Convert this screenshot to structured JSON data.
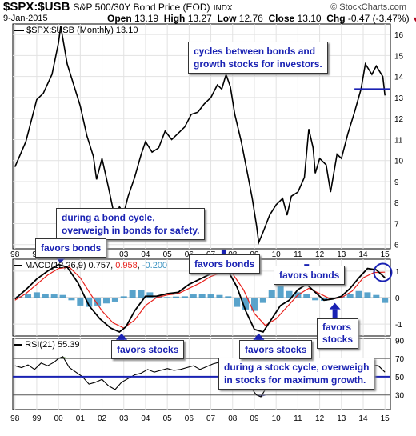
{
  "header": {
    "symbol": "$SPX:$USB",
    "description": "S&P 500/30Y Bond Price (EOD)",
    "exchange": "INDX",
    "date": "9-Jan-2015",
    "source": "© StockCharts.com",
    "quote": {
      "open_label": "Open",
      "open": "13.19",
      "high_label": "High",
      "high": "13.27",
      "low_label": "Low",
      "low": "12.76",
      "close_label": "Close",
      "close": "13.10",
      "chg_label": "Chg",
      "chg": "-0.47 (-3.47%)"
    }
  },
  "colors": {
    "price_line": "#000000",
    "macd_line": "#000000",
    "signal_line": "#e8211c",
    "histogram": "#3c93c2",
    "annotation_text": "#1a22b3",
    "annotation_arrow": "#1a22b3",
    "rsi_fill_overbought": "#6a9a4d",
    "rsi_fill_oversold": "#6d6d9d",
    "circle": "#1a22b3"
  },
  "chart_data": [
    {
      "type": "line",
      "panel": "price",
      "legend": "$SPX:$USB (Monthly) 13.10",
      "yticks": [
        6,
        7,
        8,
        9,
        10,
        11,
        12,
        13,
        14,
        15,
        16
      ],
      "ylim": [
        5.8,
        16.5
      ],
      "x": [
        1998.0,
        1998.5,
        1999.0,
        1999.3,
        1999.7,
        2000.0,
        2000.1,
        2000.4,
        2000.7,
        2001.0,
        2001.3,
        2001.6,
        2001.75,
        2002.0,
        2002.3,
        2002.6,
        2002.8,
        2003.0,
        2003.2,
        2003.5,
        2003.8,
        2004.0,
        2004.3,
        2004.6,
        2004.9,
        2005.2,
        2005.5,
        2005.8,
        2006.1,
        2006.4,
        2006.7,
        2007.0,
        2007.3,
        2007.5,
        2007.7,
        2007.9,
        2008.1,
        2008.4,
        2008.7,
        2008.9,
        2009.1,
        2009.2,
        2009.4,
        2009.7,
        2010.0,
        2010.3,
        2010.5,
        2010.7,
        2011.0,
        2011.3,
        2011.5,
        2011.7,
        2011.8,
        2012.0,
        2012.3,
        2012.5,
        2012.8,
        2013.0,
        2013.3,
        2013.6,
        2013.9,
        2014.1,
        2014.4,
        2014.6,
        2014.9,
        2015.0
      ],
      "y": [
        9.7,
        10.9,
        12.9,
        13.2,
        14.1,
        15.6,
        16.4,
        14.6,
        13.6,
        12.6,
        11.2,
        10.2,
        9.1,
        10.1,
        8.7,
        7.2,
        7.8,
        7.5,
        8.3,
        9.2,
        10.3,
        10.9,
        10.4,
        10.6,
        11.4,
        11.0,
        11.3,
        11.6,
        12.2,
        12.3,
        12.7,
        13.0,
        13.6,
        13.4,
        14.1,
        13.5,
        12.2,
        10.9,
        9.3,
        8.2,
        6.9,
        6.1,
        6.6,
        7.4,
        7.9,
        8.2,
        7.4,
        8.3,
        8.5,
        9.2,
        11.5,
        10.6,
        9.4,
        10.1,
        9.8,
        8.5,
        10.3,
        10.1,
        11.3,
        12.3,
        13.4,
        14.6,
        14.1,
        14.5,
        14.0,
        13.1
      ],
      "hline": 13.4,
      "hline_x_start": 2013.6
    },
    {
      "type": "line",
      "panel": "macd",
      "legend": "MACD(12,26,9) 0.757, 0.958, -0.200",
      "legend_parts": {
        "label": "MACD(12,26,9)",
        "macd": "0.757",
        "signal": "0.958",
        "hist": "-0.200"
      },
      "yticks": [
        -1,
        0,
        1
      ],
      "ylim": [
        -1.45,
        1.45
      ],
      "series": [
        {
          "role": "macd",
          "x": [
            1998.0,
            1998.5,
            1999.0,
            1999.5,
            2000.0,
            2000.4,
            2000.9,
            2001.4,
            2001.9,
            2002.4,
            2002.8,
            2003.1,
            2003.5,
            2004.0,
            2004.5,
            2005.0,
            2005.5,
            2006.0,
            2006.5,
            2007.0,
            2007.4,
            2007.8,
            2008.2,
            2008.6,
            2009.0,
            2009.4,
            2009.8,
            2010.2,
            2010.6,
            2011.0,
            2011.4,
            2011.8,
            2012.2,
            2012.6,
            2013.0,
            2013.4,
            2013.8,
            2014.2,
            2014.6,
            2015.0
          ],
          "y": [
            -0.05,
            0.3,
            0.7,
            1.0,
            1.25,
            1.15,
            0.55,
            -0.3,
            -0.8,
            -1.15,
            -1.3,
            -1.1,
            -0.5,
            0.05,
            0.05,
            0.15,
            0.2,
            0.5,
            0.7,
            0.9,
            1.05,
            1.0,
            0.4,
            -0.5,
            -1.2,
            -1.3,
            -0.8,
            -0.3,
            -0.1,
            0.3,
            0.5,
            0.2,
            -0.1,
            -0.05,
            0.05,
            0.35,
            0.75,
            1.1,
            1.05,
            0.75
          ]
        },
        {
          "role": "signal",
          "x": [
            1998.0,
            1998.5,
            1999.0,
            1999.5,
            2000.0,
            2000.5,
            2001.0,
            2001.5,
            2002.0,
            2002.5,
            2003.0,
            2003.5,
            2004.0,
            2004.5,
            2005.0,
            2005.5,
            2006.0,
            2006.5,
            2007.0,
            2007.5,
            2008.0,
            2008.5,
            2009.0,
            2009.5,
            2010.0,
            2010.5,
            2011.0,
            2011.5,
            2012.0,
            2012.5,
            2013.0,
            2013.5,
            2014.0,
            2014.5,
            2015.0
          ],
          "y": [
            -0.1,
            0.15,
            0.5,
            0.85,
            1.1,
            1.15,
            0.75,
            0.1,
            -0.5,
            -0.95,
            -1.15,
            -0.85,
            -0.3,
            0.0,
            0.1,
            0.15,
            0.35,
            0.55,
            0.8,
            0.95,
            0.9,
            0.3,
            -0.6,
            -1.05,
            -0.8,
            -0.35,
            0.1,
            0.35,
            0.15,
            -0.05,
            0.0,
            0.25,
            0.75,
            0.95,
            0.96
          ]
        },
        {
          "role": "histogram",
          "x": [
            1998.2,
            1998.6,
            1999.0,
            1999.4,
            1999.8,
            2000.2,
            2000.6,
            2001.0,
            2001.4,
            2001.8,
            2002.2,
            2002.6,
            2003.0,
            2003.4,
            2003.8,
            2004.2,
            2004.6,
            2005.0,
            2005.4,
            2005.8,
            2006.2,
            2006.6,
            2007.0,
            2007.4,
            2007.8,
            2008.2,
            2008.6,
            2009.0,
            2009.4,
            2009.8,
            2010.2,
            2010.6,
            2011.0,
            2011.4,
            2011.8,
            2012.2,
            2012.6,
            2013.0,
            2013.4,
            2013.8,
            2014.2,
            2014.6,
            2015.0
          ],
          "y": [
            0.05,
            0.12,
            0.2,
            0.15,
            0.12,
            0.1,
            -0.1,
            -0.3,
            -0.35,
            -0.3,
            -0.22,
            -0.15,
            0.05,
            0.3,
            0.3,
            0.2,
            0.05,
            0.02,
            0.04,
            0.05,
            0.12,
            0.15,
            0.12,
            0.1,
            0.05,
            -0.35,
            -0.45,
            -0.5,
            -0.2,
            0.3,
            0.45,
            0.25,
            0.2,
            0.15,
            -0.1,
            -0.12,
            -0.05,
            0.05,
            0.15,
            0.25,
            0.2,
            0.1,
            -0.2
          ]
        }
      ]
    },
    {
      "type": "line",
      "panel": "rsi",
      "legend": "RSI(21) 55.39",
      "yticks": [
        30,
        50,
        70,
        90
      ],
      "ylim": [
        14,
        92
      ],
      "levels": [
        30,
        70
      ],
      "x": [
        1998.0,
        1998.3,
        1998.6,
        1998.9,
        1999.2,
        1999.5,
        1999.8,
        2000.0,
        2000.2,
        2000.5,
        2000.8,
        2001.1,
        2001.4,
        2001.7,
        2002.0,
        2002.3,
        2002.6,
        2002.9,
        2003.2,
        2003.5,
        2003.8,
        2004.1,
        2004.4,
        2004.7,
        2005.0,
        2005.3,
        2005.6,
        2005.9,
        2006.2,
        2006.5,
        2006.8,
        2007.1,
        2007.4,
        2007.7,
        2008.0,
        2008.3,
        2008.6,
        2008.9,
        2009.1,
        2009.3,
        2009.6,
        2009.9,
        2010.2,
        2010.5,
        2010.8,
        2011.1,
        2011.4,
        2011.7,
        2012.0,
        2012.3,
        2012.6,
        2012.9,
        2013.2,
        2013.5,
        2013.8,
        2014.1,
        2014.4,
        2014.7,
        2015.0
      ],
      "y": [
        62,
        60,
        63,
        58,
        65,
        62,
        66,
        70,
        72,
        60,
        55,
        50,
        42,
        44,
        47,
        40,
        36,
        44,
        48,
        52,
        54,
        58,
        55,
        57,
        59,
        57,
        58,
        60,
        62,
        58,
        61,
        64,
        66,
        62,
        58,
        50,
        42,
        36,
        30,
        28,
        40,
        46,
        50,
        44,
        48,
        52,
        57,
        46,
        50,
        47,
        45,
        52,
        55,
        60,
        64,
        68,
        63,
        62,
        55
      ]
    }
  ],
  "xaxis": {
    "top_ticks": [
      "98",
      "99",
      "00",
      "01",
      "02",
      "03",
      "04",
      "05",
      "06",
      "07",
      "08",
      "09",
      "10",
      "11",
      "12",
      "13",
      "14",
      "15"
    ],
    "bottom_ticks": [
      "98",
      "99",
      "00",
      "01",
      "02",
      "03",
      "04",
      "05",
      "06",
      "07",
      "08",
      "09",
      "10",
      "11",
      "12",
      "13",
      "14",
      "15"
    ]
  },
  "annotations": {
    "cycles_box": [
      "cycles between bonds and",
      "growth stocks for investors."
    ],
    "bond_cycle_box": [
      "during a bond cycle,",
      "overweigh in bonds for safety."
    ],
    "stock_cycle_box": [
      "during a stock cycle, overweigh",
      "in stocks for maximum growth."
    ],
    "favors_bonds_1": "favors bonds",
    "favors_bonds_2": "favors bonds",
    "favors_bonds_3": "favors bonds",
    "favors_stocks_1": "favors stocks",
    "favors_stocks_2": "favors stocks",
    "favors_stocks_3": [
      "favors",
      "stocks"
    ]
  }
}
